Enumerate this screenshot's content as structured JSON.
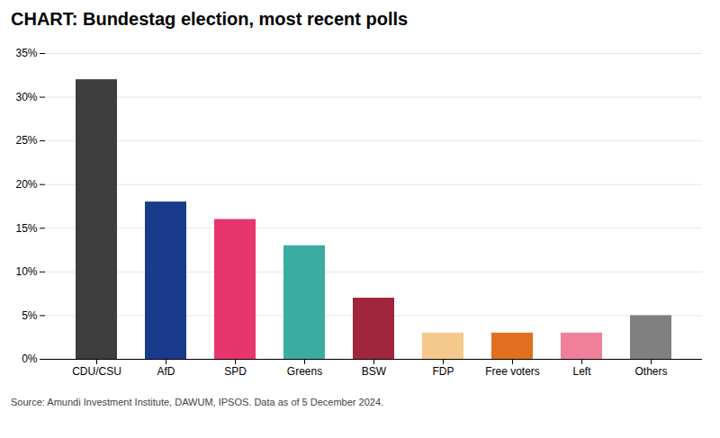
{
  "chart_data": {
    "type": "bar",
    "title": "CHART: Bundestag election, most recent polls",
    "source": "Source: Amundi Investment Institute, DAWUM, IPSOS. Data as of 5 December 2024.",
    "categories": [
      "CDU/CSU",
      "AfD",
      "SPD",
      "Greens",
      "BSW",
      "FDP",
      "Free voters",
      "Left",
      "Others"
    ],
    "values": [
      32,
      18,
      16,
      13,
      7,
      3,
      3,
      3,
      5
    ],
    "colors": [
      "#3D3D3D",
      "#1A3A8C",
      "#E8356D",
      "#3AADA0",
      "#A0263E",
      "#F5C98B",
      "#E07020",
      "#F0809A",
      "#808080"
    ],
    "ylim": [
      0,
      35
    ],
    "yticks": [
      {
        "value": 0,
        "label": "0%"
      },
      {
        "value": 5,
        "label": "5%"
      },
      {
        "value": 10,
        "label": "10%"
      },
      {
        "value": 15,
        "label": "15%"
      },
      {
        "value": 20,
        "label": "20%"
      },
      {
        "value": 25,
        "label": "25%"
      },
      {
        "value": 30,
        "label": "30%"
      },
      {
        "value": 35,
        "label": "35%"
      }
    ],
    "grid": true
  }
}
